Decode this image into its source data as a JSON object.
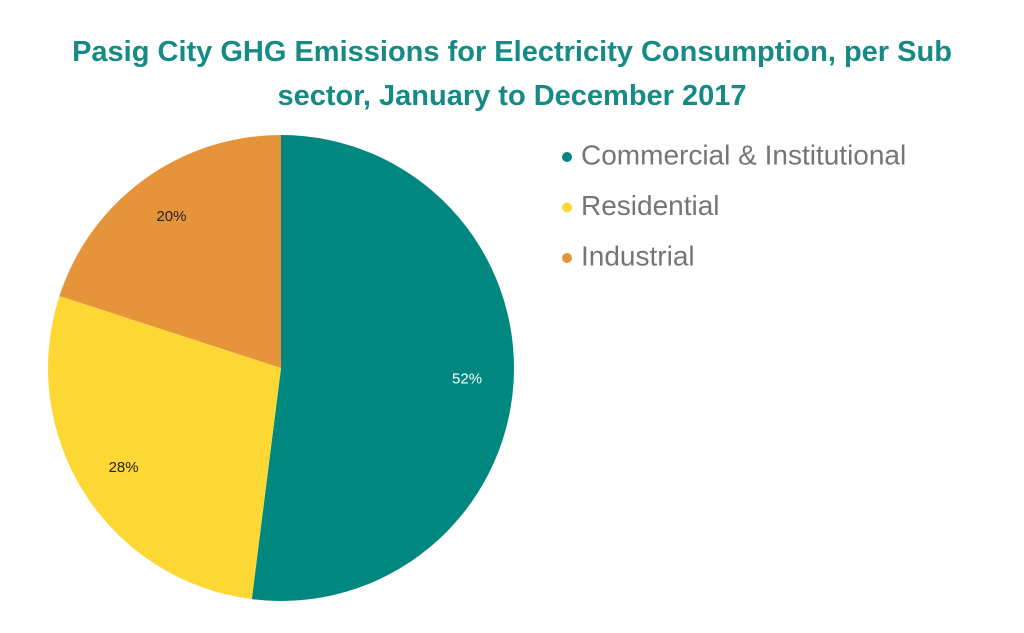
{
  "chart_data": {
    "type": "pie",
    "title": "Pasig City GHG Emissions for Electricity Consumption, per Sub sector, January to December 2017",
    "categories": [
      "Commercial & Institutional",
      "Residential",
      "Industrial"
    ],
    "values": [
      52,
      28,
      20
    ],
    "value_labels": [
      "52%",
      "28%",
      "20%"
    ],
    "colors": [
      "#00877f",
      "#fdd835",
      "#e6943a"
    ],
    "legend": "right"
  }
}
